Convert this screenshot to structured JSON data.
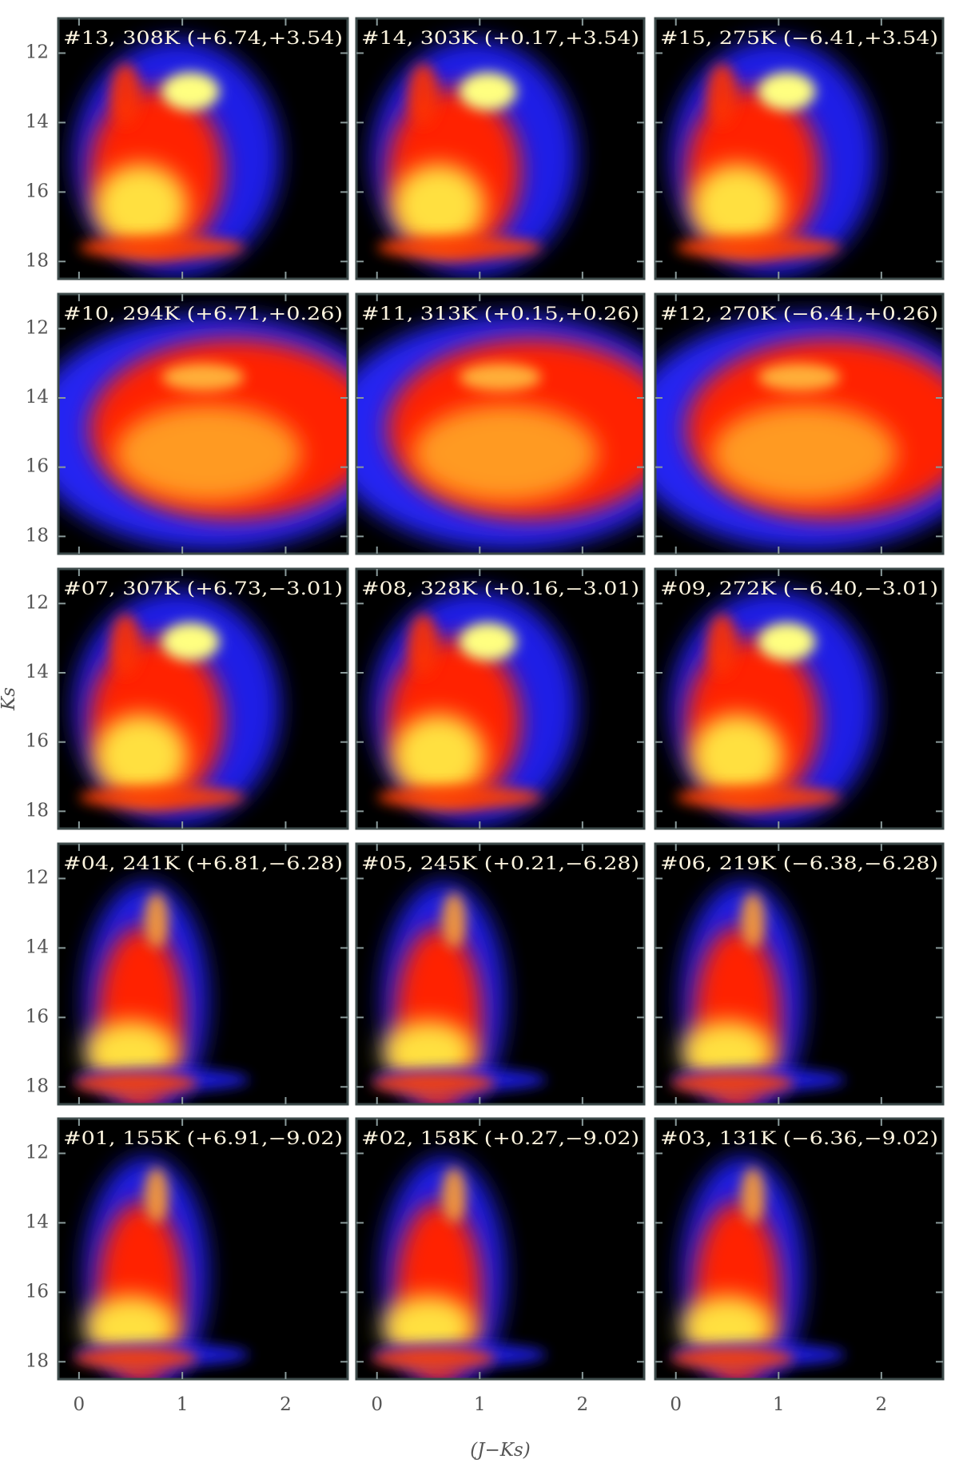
{
  "chart_data": [
    {
      "type": "heatmap",
      "label": "#13, 308K (+6.74,+3.54)",
      "xlim": [
        -0.2,
        2.6
      ],
      "ylim": [
        18.5,
        11
      ],
      "xticks": [
        0,
        1,
        2
      ],
      "yticks": [
        12,
        14,
        16,
        18
      ]
    },
    {
      "type": "heatmap",
      "label": "#14, 303K (+0.17,+3.54)",
      "xlim": [
        -0.2,
        2.6
      ],
      "ylim": [
        18.5,
        11
      ],
      "xticks": [
        0,
        1,
        2
      ],
      "yticks": [
        12,
        14,
        16,
        18
      ]
    },
    {
      "type": "heatmap",
      "label": "#15, 275K (−6.41,+3.54)",
      "xlim": [
        -0.2,
        2.6
      ],
      "ylim": [
        18.5,
        11
      ],
      "xticks": [
        0,
        1,
        2
      ],
      "yticks": [
        12,
        14,
        16,
        18
      ]
    },
    {
      "type": "heatmap",
      "label": "#10, 294K (+6.71,+0.26)",
      "xlim": [
        -0.2,
        2.6
      ],
      "ylim": [
        18.5,
        11
      ],
      "xticks": [
        0,
        1,
        2
      ],
      "yticks": [
        12,
        14,
        16,
        18
      ]
    },
    {
      "type": "heatmap",
      "label": "#11, 313K (+0.15,+0.26)",
      "xlim": [
        -0.2,
        2.6
      ],
      "ylim": [
        18.5,
        11
      ],
      "xticks": [
        0,
        1,
        2
      ],
      "yticks": [
        12,
        14,
        16,
        18
      ]
    },
    {
      "type": "heatmap",
      "label": "#12, 270K (−6.41,+0.26)",
      "xlim": [
        -0.2,
        2.6
      ],
      "ylim": [
        18.5,
        11
      ],
      "xticks": [
        0,
        1,
        2
      ],
      "yticks": [
        12,
        14,
        16,
        18
      ]
    },
    {
      "type": "heatmap",
      "label": "#07, 307K (+6.73,−3.01)",
      "xlim": [
        -0.2,
        2.6
      ],
      "ylim": [
        18.5,
        11
      ],
      "xticks": [
        0,
        1,
        2
      ],
      "yticks": [
        12,
        14,
        16,
        18
      ],
      "y_label": "Ks"
    },
    {
      "type": "heatmap",
      "label": "#08, 328K (+0.16,−3.01)",
      "xlim": [
        -0.2,
        2.6
      ],
      "ylim": [
        18.5,
        11
      ],
      "xticks": [
        0,
        1,
        2
      ],
      "yticks": [
        12,
        14,
        16,
        18
      ]
    },
    {
      "type": "heatmap",
      "label": "#09, 272K (−6.40,−3.01)",
      "xlim": [
        -0.2,
        2.6
      ],
      "ylim": [
        18.5,
        11
      ],
      "xticks": [
        0,
        1,
        2
      ],
      "yticks": [
        12,
        14,
        16,
        18
      ]
    },
    {
      "type": "heatmap",
      "label": "#04, 241K (+6.81,−6.28)",
      "xlim": [
        -0.2,
        2.6
      ],
      "ylim": [
        18.5,
        11
      ],
      "xticks": [
        0,
        1,
        2
      ],
      "yticks": [
        12,
        14,
        16,
        18
      ]
    },
    {
      "type": "heatmap",
      "label": "#05, 245K (+0.21,−6.28)",
      "xlim": [
        -0.2,
        2.6
      ],
      "ylim": [
        18.5,
        11
      ],
      "xticks": [
        0,
        1,
        2
      ],
      "yticks": [
        12,
        14,
        16,
        18
      ]
    },
    {
      "type": "heatmap",
      "label": "#06, 219K (−6.38,−6.28)",
      "xlim": [
        -0.2,
        2.6
      ],
      "ylim": [
        18.5,
        11
      ],
      "xticks": [
        0,
        1,
        2
      ],
      "yticks": [
        12,
        14,
        16,
        18
      ]
    },
    {
      "type": "heatmap",
      "label": "#01, 155K (+6.91,−9.02)",
      "xlim": [
        -0.2,
        2.6
      ],
      "ylim": [
        18.5,
        11
      ],
      "xticks": [
        0,
        1,
        2
      ],
      "yticks": [
        12,
        14,
        16,
        18
      ]
    },
    {
      "type": "heatmap",
      "label": "#02, 158K (+0.27,−9.02)",
      "xlim": [
        -0.2,
        2.6
      ],
      "ylim": [
        18.5,
        11
      ],
      "xticks": [
        0,
        1,
        2
      ],
      "yticks": [
        12,
        14,
        16,
        18
      ],
      "x_label": "(J−Ks)"
    },
    {
      "type": "heatmap",
      "label": "#03, 131K (−6.36,−9.02)",
      "xlim": [
        -0.2,
        2.6
      ],
      "ylim": [
        18.5,
        11
      ],
      "xticks": [
        0,
        1,
        2
      ],
      "yticks": [
        12,
        14,
        16,
        18
      ]
    }
  ]
}
